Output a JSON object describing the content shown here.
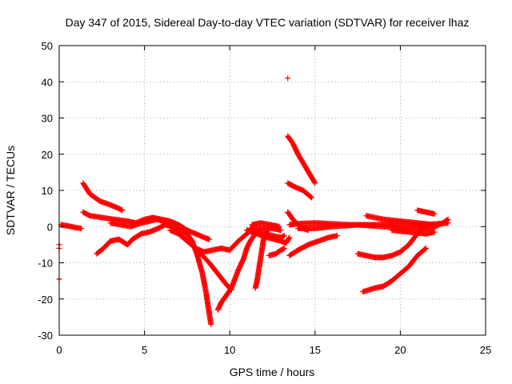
{
  "chart_data": {
    "type": "scatter",
    "title": "Day 347 of 2015, Sidereal Day-to-day VTEC variation (SDTVAR) for receiver lhaz",
    "xlabel": "GPS time / hours",
    "ylabel": "SDTVAR / TECUs",
    "xlim": [
      0,
      25
    ],
    "ylim": [
      -30,
      50
    ],
    "xticks": [
      0,
      5,
      10,
      15,
      20,
      25
    ],
    "yticks": [
      -30,
      -20,
      -10,
      0,
      10,
      20,
      30,
      40,
      50
    ],
    "grid": true,
    "marker": "+",
    "series_color": "#ff0000",
    "tracks": [
      {
        "name": "t1",
        "points": [
          [
            0.1,
            0.5
          ],
          [
            0.5,
            0.2
          ],
          [
            1.0,
            -0.3
          ],
          [
            1.3,
            -0.5
          ]
        ]
      },
      {
        "name": "t2",
        "points": [
          [
            1.4,
            12
          ],
          [
            1.8,
            9
          ],
          [
            2.4,
            7
          ],
          [
            3.0,
            6
          ],
          [
            3.5,
            5
          ],
          [
            3.7,
            4.5
          ]
        ]
      },
      {
        "name": "t3",
        "points": [
          [
            1.4,
            4
          ],
          [
            1.8,
            3
          ],
          [
            2.5,
            2.5
          ],
          [
            3.2,
            2
          ],
          [
            4.0,
            1.5
          ],
          [
            4.5,
            1
          ],
          [
            5.0,
            2
          ],
          [
            5.5,
            2.5
          ],
          [
            6.0,
            2
          ],
          [
            6.5,
            1.5
          ],
          [
            7.0,
            0.5
          ],
          [
            7.5,
            -1
          ],
          [
            8.0,
            -2
          ],
          [
            8.5,
            -3
          ],
          [
            8.8,
            -3.5
          ]
        ]
      },
      {
        "name": "t4",
        "points": [
          [
            2.2,
            -7.5
          ],
          [
            2.6,
            -6
          ],
          [
            3.0,
            -4
          ],
          [
            3.5,
            -3.5
          ],
          [
            4.0,
            -5
          ],
          [
            4.3,
            -3.5
          ],
          [
            4.8,
            -2
          ],
          [
            5.3,
            -1.5
          ],
          [
            5.8,
            -0.5
          ],
          [
            6.2,
            0.5
          ],
          [
            6.6,
            0
          ],
          [
            7.0,
            -1
          ],
          [
            7.3,
            -2
          ]
        ]
      },
      {
        "name": "t5",
        "points": [
          [
            3.0,
            1
          ],
          [
            3.6,
            0.5
          ],
          [
            4.2,
            0
          ],
          [
            4.8,
            1
          ],
          [
            5.3,
            1.5
          ],
          [
            5.7,
            2
          ],
          [
            6.1,
            1.5
          ],
          [
            6.6,
            0.5
          ],
          [
            7.0,
            -0.5
          ],
          [
            7.5,
            -2
          ],
          [
            7.8,
            -4
          ],
          [
            8.1,
            -8
          ],
          [
            8.4,
            -13
          ],
          [
            8.6,
            -18
          ],
          [
            8.8,
            -24
          ],
          [
            8.9,
            -27
          ]
        ]
      },
      {
        "name": "t6",
        "points": [
          [
            6.5,
            -1
          ],
          [
            7.0,
            -2
          ],
          [
            7.5,
            -4
          ],
          [
            8.0,
            -6
          ],
          [
            8.5,
            -7
          ],
          [
            9.0,
            -6.5
          ],
          [
            9.5,
            -6
          ],
          [
            10.0,
            -6.5
          ],
          [
            10.5,
            -4
          ],
          [
            11.0,
            -2
          ],
          [
            11.3,
            -0.5
          ]
        ]
      },
      {
        "name": "t7",
        "points": [
          [
            6.8,
            -1
          ],
          [
            7.3,
            -3
          ],
          [
            7.8,
            -5
          ],
          [
            8.3,
            -7.5
          ],
          [
            8.8,
            -10
          ],
          [
            9.3,
            -13
          ],
          [
            9.8,
            -16
          ],
          [
            10.1,
            -17.5
          ]
        ]
      },
      {
        "name": "t8",
        "points": [
          [
            9.3,
            -23
          ],
          [
            9.5,
            -21
          ],
          [
            9.8,
            -19
          ],
          [
            10.1,
            -17
          ],
          [
            10.5,
            -12
          ],
          [
            10.8,
            -9
          ],
          [
            11.0,
            -6
          ],
          [
            11.2,
            -4
          ],
          [
            11.5,
            -2
          ],
          [
            11.8,
            -1
          ]
        ]
      },
      {
        "name": "t9",
        "points": [
          [
            11.5,
            -17
          ],
          [
            11.6,
            -15
          ],
          [
            11.7,
            -12
          ],
          [
            11.8,
            -9
          ],
          [
            11.9,
            -6
          ],
          [
            12.0,
            -3
          ],
          [
            12.2,
            -1
          ]
        ]
      },
      {
        "name": "t10",
        "points": [
          [
            11.3,
            0.5
          ],
          [
            11.8,
            1
          ],
          [
            12.4,
            0.5
          ],
          [
            12.9,
            0
          ]
        ]
      },
      {
        "name": "t11",
        "points": [
          [
            11.0,
            -1
          ],
          [
            11.5,
            -1.5
          ],
          [
            12.0,
            -2
          ],
          [
            12.5,
            -2.5
          ],
          [
            13.0,
            -3
          ],
          [
            13.2,
            -2.5
          ]
        ]
      },
      {
        "name": "t12",
        "points": [
          [
            11.2,
            -0.5
          ],
          [
            11.8,
            -0.5
          ],
          [
            12.5,
            -0.5
          ],
          [
            13.0,
            -1
          ]
        ]
      },
      {
        "name": "t13",
        "points": [
          [
            11.0,
            -1
          ],
          [
            11.6,
            -2
          ],
          [
            12.2,
            -3
          ],
          [
            12.6,
            -3.5
          ],
          [
            13.0,
            -4
          ],
          [
            13.3,
            -4.5
          ],
          [
            13.5,
            -3
          ]
        ]
      },
      {
        "name": "t14",
        "points": [
          [
            12.3,
            -8
          ],
          [
            12.7,
            -7.5
          ],
          [
            13.0,
            -6.5
          ],
          [
            13.2,
            -6
          ]
        ]
      },
      {
        "name": "t15",
        "points": [
          [
            13.4,
            25
          ],
          [
            13.7,
            23
          ],
          [
            14.0,
            20
          ],
          [
            14.5,
            16
          ],
          [
            15.0,
            12
          ]
        ]
      },
      {
        "name": "t16",
        "points": [
          [
            13.4,
            12
          ],
          [
            13.8,
            11
          ],
          [
            14.3,
            10
          ],
          [
            14.8,
            8
          ]
        ]
      },
      {
        "name": "t17",
        "points": [
          [
            13.4,
            4
          ],
          [
            13.7,
            2
          ],
          [
            14.0,
            0.5
          ],
          [
            14.3,
            -0.5
          ],
          [
            14.6,
            -1
          ]
        ]
      },
      {
        "name": "t18",
        "points": [
          [
            13.5,
            -8
          ],
          [
            14.0,
            -6.5
          ],
          [
            14.6,
            -5
          ],
          [
            15.2,
            -4
          ],
          [
            15.8,
            -3
          ],
          [
            16.3,
            -2.5
          ]
        ]
      },
      {
        "name": "t19",
        "points": [
          [
            13.5,
            0.5
          ],
          [
            14.0,
            0.8
          ],
          [
            15.0,
            1
          ],
          [
            15.8,
            0.8
          ],
          [
            17.0,
            0.5
          ],
          [
            18.5,
            0.5
          ],
          [
            20.0,
            0.8
          ],
          [
            21.5,
            0.5
          ],
          [
            22.8,
            1
          ]
        ]
      },
      {
        "name": "t20",
        "points": [
          [
            14.0,
            -0.5
          ],
          [
            15.0,
            -0.5
          ],
          [
            16.0,
            0
          ],
          [
            17.5,
            0.5
          ],
          [
            19.0,
            0
          ],
          [
            20.5,
            -0.5
          ],
          [
            22.0,
            -0.5
          ]
        ]
      },
      {
        "name": "t21",
        "points": [
          [
            17.5,
            -7.5
          ],
          [
            18.0,
            -8
          ],
          [
            18.5,
            -8.5
          ],
          [
            19.0,
            -8.5
          ],
          [
            19.5,
            -8
          ],
          [
            20.0,
            -7
          ],
          [
            20.5,
            -5
          ],
          [
            21.0,
            -2
          ],
          [
            21.5,
            0
          ]
        ]
      },
      {
        "name": "t22",
        "points": [
          [
            17.8,
            -18
          ],
          [
            18.5,
            -17
          ],
          [
            19.0,
            -16.5
          ],
          [
            19.5,
            -15
          ],
          [
            20.0,
            -13
          ],
          [
            20.5,
            -11
          ],
          [
            21.0,
            -8
          ],
          [
            21.5,
            -6
          ]
        ]
      },
      {
        "name": "t23",
        "points": [
          [
            18.0,
            3
          ],
          [
            19.0,
            2
          ],
          [
            20.0,
            1.5
          ],
          [
            21.0,
            1
          ],
          [
            22.0,
            0.5
          ]
        ]
      },
      {
        "name": "t24",
        "points": [
          [
            19.5,
            -1
          ],
          [
            20.5,
            -1.5
          ],
          [
            21.5,
            -2
          ],
          [
            22.0,
            -1.5
          ]
        ]
      },
      {
        "name": "t25",
        "points": [
          [
            21.0,
            4.5
          ],
          [
            21.5,
            4
          ],
          [
            22.0,
            3.5
          ]
        ]
      },
      {
        "name": "t26",
        "points": [
          [
            22.0,
            0
          ],
          [
            22.5,
            1
          ],
          [
            22.8,
            2
          ]
        ]
      }
    ],
    "outliers": [
      [
        13.4,
        41
      ],
      [
        0.0,
        -5
      ],
      [
        0.0,
        -6
      ],
      [
        0.0,
        -14.5
      ]
    ]
  }
}
